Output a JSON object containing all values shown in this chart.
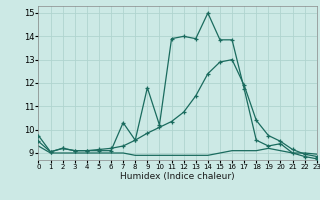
{
  "xlabel": "Humidex (Indice chaleur)",
  "bg_color": "#cce9e5",
  "grid_color": "#b0d4cf",
  "line_color": "#1a6b5e",
  "line1_x": [
    0,
    1,
    2,
    3,
    4,
    5,
    6,
    7,
    8,
    9,
    10,
    11,
    12,
    13,
    14,
    15,
    16,
    17,
    18,
    19,
    20,
    21,
    22,
    23
  ],
  "line1_y": [
    9.75,
    9.05,
    9.2,
    9.1,
    9.1,
    9.1,
    9.1,
    10.3,
    9.55,
    11.8,
    10.2,
    13.9,
    14.0,
    13.9,
    15.0,
    13.85,
    13.85,
    11.75,
    9.55,
    9.3,
    9.4,
    9.0,
    8.85,
    8.75
  ],
  "line2_x": [
    0,
    1,
    2,
    3,
    4,
    5,
    6,
    7,
    8,
    9,
    10,
    11,
    12,
    13,
    14,
    15,
    16,
    17,
    18,
    19,
    20,
    21,
    22,
    23
  ],
  "line2_y": [
    9.3,
    9.0,
    9.0,
    9.0,
    9.0,
    9.0,
    9.0,
    9.0,
    8.9,
    8.9,
    8.9,
    8.9,
    8.9,
    8.9,
    8.9,
    9.0,
    9.1,
    9.1,
    9.1,
    9.2,
    9.1,
    9.0,
    9.0,
    8.95
  ],
  "line3_x": [
    0,
    1,
    2,
    3,
    4,
    5,
    6,
    7,
    8,
    9,
    10,
    11,
    12,
    13,
    14,
    15,
    16,
    17,
    18,
    19,
    20,
    21,
    22,
    23
  ],
  "line3_y": [
    9.5,
    9.05,
    9.2,
    9.1,
    9.1,
    9.15,
    9.2,
    9.3,
    9.55,
    9.85,
    10.1,
    10.35,
    10.75,
    11.45,
    12.4,
    12.9,
    13.0,
    11.9,
    10.4,
    9.75,
    9.5,
    9.15,
    8.95,
    8.85
  ],
  "xlim": [
    0,
    23
  ],
  "ylim": [
    8.7,
    15.3
  ],
  "yticks": [
    9,
    10,
    11,
    12,
    13,
    14,
    15
  ],
  "xticks": [
    0,
    1,
    2,
    3,
    4,
    5,
    6,
    7,
    8,
    9,
    10,
    11,
    12,
    13,
    14,
    15,
    16,
    17,
    18,
    19,
    20,
    21,
    22,
    23
  ]
}
